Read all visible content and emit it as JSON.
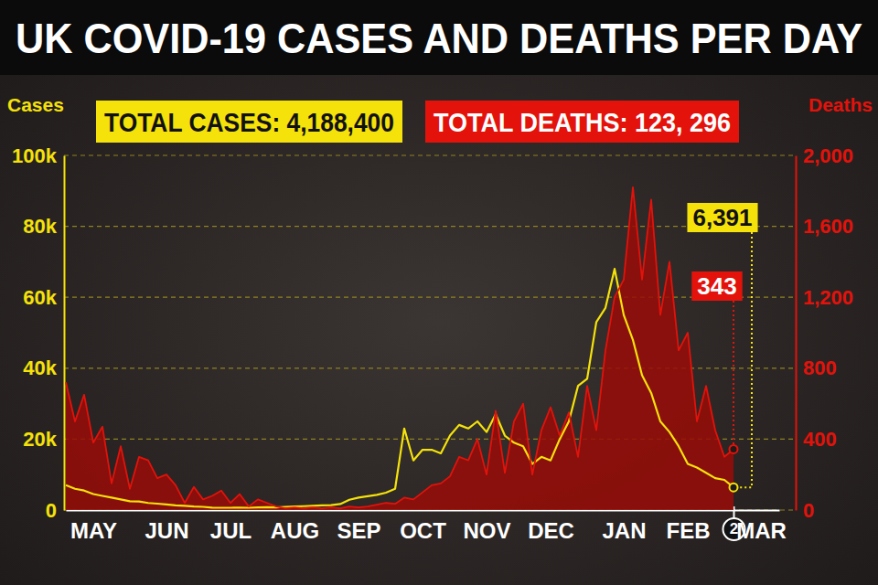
{
  "chart_data": {
    "type": "line",
    "title": "UK COVID-19 CASES AND DEATHS PER DAY",
    "ylabel": "Cases",
    "y2label": "Deaths",
    "grid": true,
    "categories": [
      null,
      null,
      null,
      "MAY",
      null,
      null,
      null,
      null,
      null,
      null,
      null,
      "JUN",
      null,
      null,
      null,
      null,
      null,
      null,
      "JUL",
      null,
      null,
      null,
      null,
      null,
      null,
      "AUG",
      null,
      null,
      null,
      null,
      null,
      null,
      "SEP",
      null,
      null,
      null,
      null,
      null,
      null,
      "OCT",
      null,
      null,
      null,
      null,
      null,
      null,
      "NOV",
      null,
      null,
      null,
      null,
      null,
      null,
      "DEC",
      null,
      null,
      null,
      null,
      null,
      null,
      null,
      "JAN",
      null,
      null,
      null,
      null,
      null,
      null,
      "FEB",
      null,
      null,
      null,
      null,
      "2",
      null,
      null,
      "MAR",
      null,
      null
    ],
    "ylim": [
      0,
      100000
    ],
    "yticks": [
      0,
      {
        "value": 20000,
        "label": "20k"
      },
      {
        "value": 40000,
        "label": "40k"
      },
      {
        "value": 60000,
        "label": "60k"
      },
      {
        "value": 80000,
        "label": "80k"
      },
      {
        "value": 100000,
        "label": "100k"
      }
    ],
    "y2lim": [
      0,
      2000
    ],
    "y2ticks": [
      0,
      400,
      800,
      {
        "value": 1200,
        "label": "1,200"
      },
      {
        "value": 1600,
        "label": "1,600"
      },
      {
        "value": 2000,
        "label": "2,000"
      }
    ],
    "series": [
      {
        "name": "TOTAL CASES: 4,188,400",
        "type": "line",
        "color": "#f5e20a",
        "values": [
          7000,
          6000,
          5500,
          4500,
          4000,
          3500,
          3000,
          2500,
          2400,
          2000,
          1800,
          1600,
          1300,
          1200,
          1000,
          900,
          700,
          650,
          650,
          700,
          650,
          750,
          800,
          750,
          900,
          1000,
          1100,
          1200,
          1300,
          1400,
          1700,
          2900,
          3500,
          3900,
          4300,
          4900,
          6000,
          23000,
          14000,
          17000,
          17000,
          16000,
          21000,
          24000,
          23000,
          25000,
          22000,
          27000,
          21000,
          19000,
          18000,
          13000,
          15000,
          14000,
          20000,
          25000,
          35000,
          37000,
          53000,
          57000,
          68000,
          55000,
          48000,
          38000,
          33000,
          25000,
          22000,
          18000,
          13000,
          12000,
          10500,
          9000,
          8500,
          6391,
          null,
          null,
          null,
          null,
          null
        ],
        "value_labels": [
          null,
          null,
          null,
          null,
          null,
          null,
          null,
          null,
          null,
          null,
          null,
          null,
          null,
          null,
          null,
          null,
          null,
          null,
          null,
          null,
          null,
          null,
          null,
          null,
          null,
          null,
          null,
          null,
          null,
          null,
          null,
          null,
          null,
          null,
          null,
          null,
          null,
          null,
          null,
          null,
          null,
          null,
          null,
          null,
          null,
          null,
          null,
          null,
          null,
          null,
          null,
          null,
          null,
          null,
          null,
          null,
          null,
          null,
          null,
          null,
          null,
          null,
          null,
          null,
          null,
          null,
          null,
          null,
          null,
          null,
          null,
          null,
          null,
          "6,391",
          null,
          null,
          null,
          null,
          null
        ]
      },
      {
        "name": "TOTAL DEATHS: 123, 296",
        "type": "area",
        "color": "#e3120b",
        "axis": "y2",
        "values": [
          720,
          500,
          650,
          380,
          470,
          150,
          360,
          120,
          300,
          280,
          180,
          200,
          140,
          40,
          130,
          60,
          80,
          110,
          40,
          90,
          20,
          60,
          40,
          20,
          10,
          15,
          10,
          15,
          10,
          15,
          10,
          20,
          15,
          20,
          30,
          40,
          35,
          70,
          60,
          100,
          140,
          150,
          190,
          300,
          280,
          400,
          200,
          560,
          210,
          500,
          600,
          200,
          450,
          580,
          420,
          550,
          300,
          700,
          450,
          900,
          1200,
          1300,
          1820,
          1300,
          1750,
          1100,
          1400,
          900,
          1000,
          500,
          700,
          450,
          300,
          343,
          null,
          null,
          null,
          null,
          null
        ],
        "value_labels": [
          null,
          null,
          null,
          null,
          null,
          null,
          null,
          null,
          null,
          null,
          null,
          null,
          null,
          null,
          null,
          null,
          null,
          null,
          null,
          null,
          null,
          null,
          null,
          null,
          null,
          null,
          null,
          null,
          null,
          null,
          null,
          null,
          null,
          null,
          null,
          null,
          null,
          null,
          null,
          null,
          null,
          null,
          null,
          null,
          null,
          null,
          null,
          null,
          null,
          null,
          null,
          null,
          null,
          null,
          null,
          null,
          null,
          null,
          null,
          null,
          null,
          null,
          null,
          null,
          null,
          null,
          null,
          null,
          null,
          null,
          null,
          null,
          null,
          "343",
          null,
          null,
          null,
          null,
          null
        ]
      }
    ]
  }
}
